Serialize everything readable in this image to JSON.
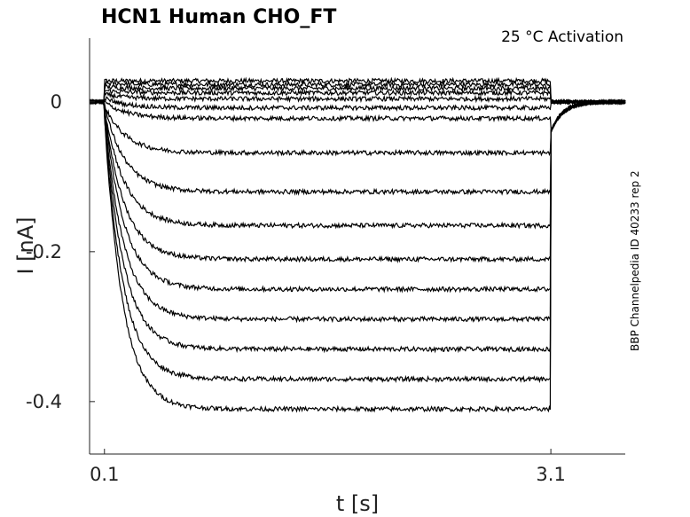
{
  "chart_data": {
    "type": "line",
    "title": "HCN1  Human  CHO_FT",
    "annotation": "25 °C  Activation",
    "side_label": "BBP Channelpedia ID 40233 rep 2",
    "xlabel": "t [s]",
    "ylabel": "I [nA]",
    "xlim": [
      0,
      3.6
    ],
    "ylim": [
      -0.47,
      0.085
    ],
    "xticks": [
      0.1,
      3.1
    ],
    "xtick_labels": [
      "0.1",
      "3.1"
    ],
    "yticks": [
      0,
      -0.2,
      -0.4
    ],
    "ytick_labels": [
      "0",
      "-0.2",
      "-0.4"
    ],
    "grid": false,
    "pulse_start": 0.1,
    "pulse_end": 3.1,
    "series": [
      {
        "values": [
          0.028,
          0.028
        ]
      },
      {
        "values": [
          0.025,
          0.023
        ]
      },
      {
        "values": [
          0.02,
          0.018
        ]
      },
      {
        "values": [
          0.015,
          0.012
        ]
      },
      {
        "values": [
          0.01,
          0.004
        ]
      },
      {
        "values": [
          0.005,
          -0.008
        ]
      },
      {
        "values": [
          0.0,
          -0.022
        ]
      },
      {
        "values": [
          -0.005,
          -0.068
        ]
      },
      {
        "values": [
          -0.005,
          -0.12
        ]
      },
      {
        "values": [
          -0.01,
          -0.165
        ]
      },
      {
        "values": [
          -0.01,
          -0.21
        ]
      },
      {
        "values": [
          -0.01,
          -0.25
        ]
      },
      {
        "values": [
          -0.015,
          -0.29
        ]
      },
      {
        "values": [
          -0.015,
          -0.33
        ]
      },
      {
        "values": [
          -0.02,
          -0.37
        ]
      },
      {
        "values": [
          -0.02,
          -0.41
        ]
      }
    ]
  }
}
